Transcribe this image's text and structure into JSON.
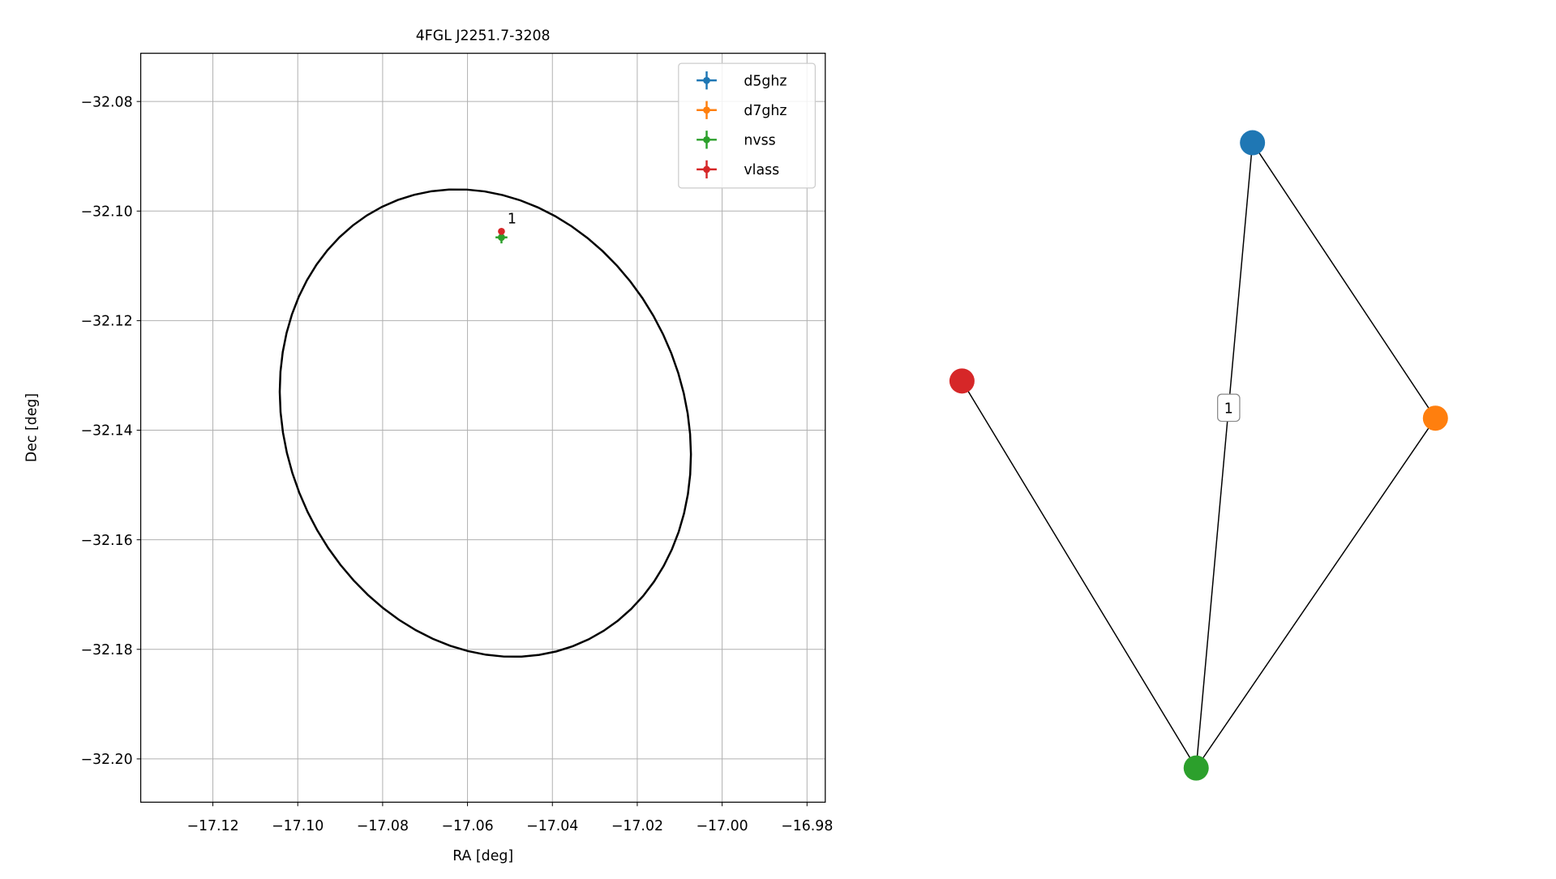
{
  "chart_data": [
    {
      "type": "scatter",
      "title": "4FGL J2251.7-3208",
      "xlabel": "RA [deg]",
      "ylabel": "Dec [deg]",
      "xlim": [
        -17.137,
        -16.9757
      ],
      "ylim": [
        -32.2079,
        -32.0712
      ],
      "xticks": [
        {
          "value": -17.12,
          "label": "−17.12"
        },
        {
          "value": -17.1,
          "label": "−17.10"
        },
        {
          "value": -17.08,
          "label": "−17.08"
        },
        {
          "value": -17.06,
          "label": "−17.06"
        },
        {
          "value": -17.04,
          "label": "−17.04"
        },
        {
          "value": -17.02,
          "label": "−17.02"
        },
        {
          "value": -17.0,
          "label": "−17.00"
        },
        {
          "value": -16.98,
          "label": "−16.98"
        }
      ],
      "yticks": [
        {
          "value": -32.08,
          "label": "−32.08"
        },
        {
          "value": -32.1,
          "label": "−32.10"
        },
        {
          "value": -32.12,
          "label": "−32.12"
        },
        {
          "value": -32.14,
          "label": "−32.14"
        },
        {
          "value": -32.16,
          "label": "−32.16"
        },
        {
          "value": -32.18,
          "label": "−32.18"
        },
        {
          "value": -32.2,
          "label": "−32.20"
        }
      ],
      "grid": true,
      "legend": "upper right",
      "series": [
        {
          "name": "d5ghz",
          "color": "#1f77b4",
          "x": [
            -17.052
          ],
          "y": [
            -32.1048
          ],
          "xerr": [
            0.0003
          ],
          "yerr": [
            0.0003
          ]
        },
        {
          "name": "d7ghz",
          "color": "#ff7f0e",
          "x": [
            -17.052
          ],
          "y": [
            -32.1048
          ],
          "xerr": [
            0.0003
          ],
          "yerr": [
            0.0003
          ]
        },
        {
          "name": "nvss",
          "color": "#2ca02c",
          "x": [
            -17.052
          ],
          "y": [
            -32.1048
          ],
          "xerr": [
            0.0014
          ],
          "yerr": [
            0.0011
          ]
        },
        {
          "name": "vlass",
          "color": "#d62728",
          "x": [
            -17.052
          ],
          "y": [
            -32.1037
          ],
          "xerr": [
            0.0002
          ],
          "yerr": [
            0.0002
          ]
        }
      ],
      "annotations": [
        {
          "text": "1",
          "series": 3
        }
      ],
      "ellipse": {
        "ra": -17.0558,
        "dec": -32.1387,
        "semi_major": 0.0497,
        "semi_minor": 0.0412,
        "angle": -23.5,
        "color": "#000000"
      }
    },
    {
      "type": "network",
      "nodes": [
        {
          "color": "#1f77b4"
        },
        {
          "color": "#ff7f0e"
        },
        {
          "color": "#2ca02c"
        },
        {
          "color": "#d62728"
        }
      ],
      "edges": [
        {
          "source": 0,
          "target": 1
        },
        {
          "source": 0,
          "target": 2,
          "label": "1"
        },
        {
          "source": 1,
          "target": 2
        },
        {
          "source": 3,
          "target": 2
        }
      ]
    }
  ]
}
